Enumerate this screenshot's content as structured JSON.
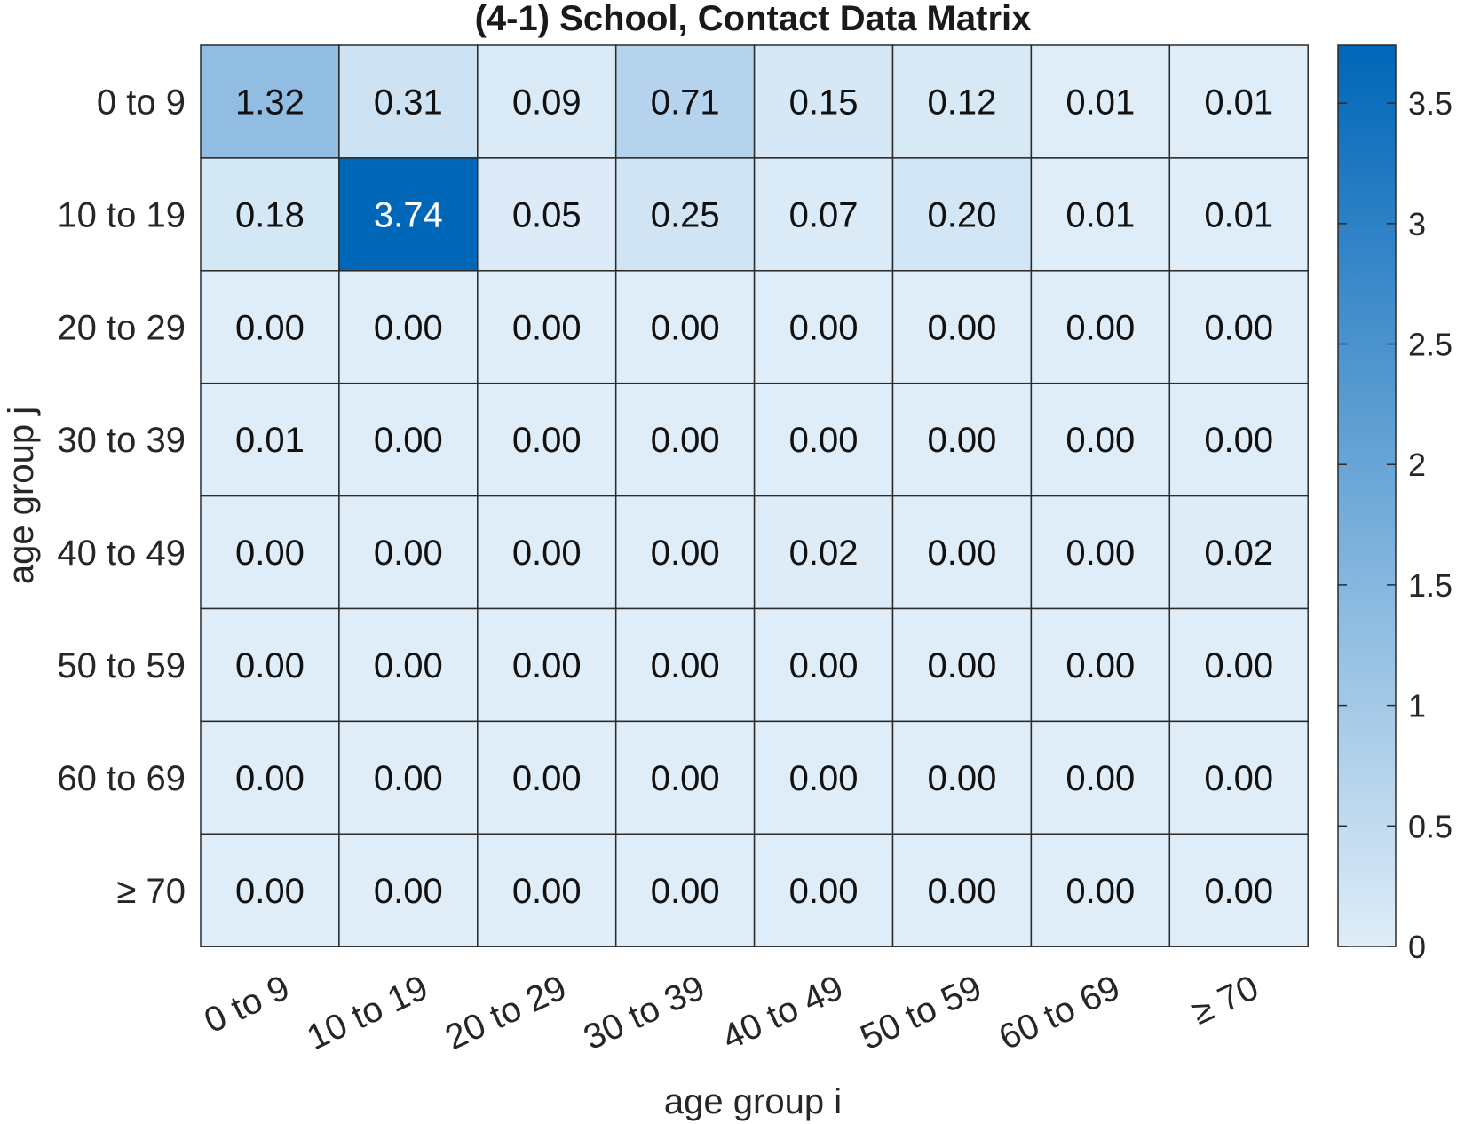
{
  "chart_data": {
    "type": "heatmap",
    "title": "(4-1) School, Contact Data Matrix",
    "xlabel": "age group i",
    "ylabel": "age group j",
    "x_categories": [
      "0 to 9",
      "10 to 19",
      "20 to 29",
      "30 to 39",
      "40 to 49",
      "50 to 59",
      "60 to 69",
      "≥ 70"
    ],
    "y_categories": [
      "0 to 9",
      "10 to 19",
      "20 to 29",
      "30 to 39",
      "40 to 49",
      "50 to 59",
      "60 to 69",
      "≥ 70"
    ],
    "values": [
      [
        1.32,
        0.31,
        0.09,
        0.71,
        0.15,
        0.12,
        0.01,
        0.01
      ],
      [
        0.18,
        3.74,
        0.05,
        0.25,
        0.07,
        0.2,
        0.01,
        0.01
      ],
      [
        0.0,
        0.0,
        0.0,
        0.0,
        0.0,
        0.0,
        0.0,
        0.0
      ],
      [
        0.01,
        0.0,
        0.0,
        0.0,
        0.0,
        0.0,
        0.0,
        0.0
      ],
      [
        0.0,
        0.0,
        0.0,
        0.0,
        0.02,
        0.0,
        0.0,
        0.02
      ],
      [
        0.0,
        0.0,
        0.0,
        0.0,
        0.0,
        0.0,
        0.0,
        0.0
      ],
      [
        0.0,
        0.0,
        0.0,
        0.0,
        0.0,
        0.0,
        0.0,
        0.0
      ],
      [
        0.0,
        0.0,
        0.0,
        0.0,
        0.0,
        0.0,
        0.0,
        0.0
      ]
    ],
    "value_labels": [
      [
        "1.32",
        "0.31",
        "0.09",
        "0.71",
        "0.15",
        "0.12",
        "0.01",
        "0.01"
      ],
      [
        "0.18",
        "3.74",
        "0.05",
        "0.25",
        "0.07",
        "0.20",
        "0.01",
        "0.01"
      ],
      [
        "0.00",
        "0.00",
        "0.00",
        "0.00",
        "0.00",
        "0.00",
        "0.00",
        "0.00"
      ],
      [
        "0.01",
        "0.00",
        "0.00",
        "0.00",
        "0.00",
        "0.00",
        "0.00",
        "0.00"
      ],
      [
        "0.00",
        "0.00",
        "0.00",
        "0.00",
        "0.02",
        "0.00",
        "0.00",
        "0.02"
      ],
      [
        "0.00",
        "0.00",
        "0.00",
        "0.00",
        "0.00",
        "0.00",
        "0.00",
        "0.00"
      ],
      [
        "0.00",
        "0.00",
        "0.00",
        "0.00",
        "0.00",
        "0.00",
        "0.00",
        "0.00"
      ],
      [
        "0.00",
        "0.00",
        "0.00",
        "0.00",
        "0.00",
        "0.00",
        "0.00",
        "0.00"
      ]
    ],
    "colorbar": {
      "range": [
        0,
        3.74
      ],
      "ticks": [
        0,
        0.5,
        1,
        1.5,
        2,
        2.5,
        3,
        3.5
      ],
      "tick_labels": [
        "0",
        "0.5",
        "1",
        "1.5",
        "2",
        "2.5",
        "3",
        "3.5"
      ],
      "color_low": "#dfedf8",
      "color_high": "#0066b8",
      "placement": "right"
    },
    "grid": true,
    "colors": {
      "cell_border": "#2b2b2b",
      "text_dark": "#111111",
      "text_light": "#ffffff"
    }
  }
}
